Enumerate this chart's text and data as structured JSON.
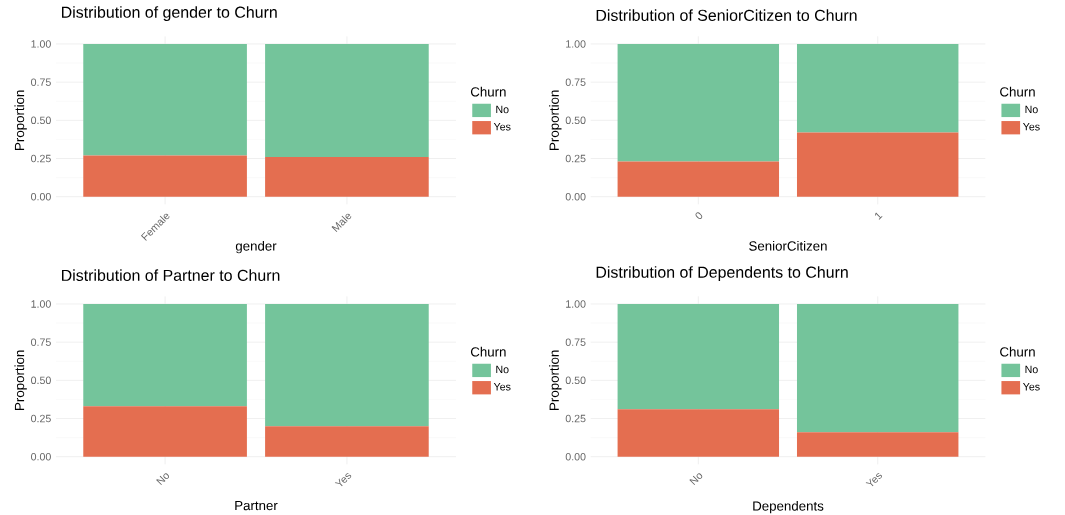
{
  "chart_data": [
    {
      "type": "bar",
      "title": "Distribution of gender to Churn",
      "xlabel": "gender",
      "ylabel": "Proportion",
      "legend_title": "Churn",
      "categories": [
        "Female",
        "Male"
      ],
      "stacked": true,
      "legend": "right",
      "grid": true,
      "ylim": [
        -0.05,
        1.05
      ],
      "yticks": [
        {
          "value": 0,
          "label": "0.00"
        },
        {
          "value": 0.25,
          "label": "0.25"
        },
        {
          "value": 0.5,
          "label": "0.50"
        },
        {
          "value": 0.75,
          "label": "0.75"
        },
        {
          "value": 1,
          "label": "1.00"
        }
      ],
      "series": [
        {
          "name": "Yes",
          "color": "#e46e50",
          "values": [
            0.27,
            0.26
          ]
        },
        {
          "name": "No",
          "color": "#74c49b",
          "values": [
            0.73,
            0.74
          ]
        }
      ]
    },
    {
      "type": "bar",
      "title": "Distribution of SeniorCitizen to Churn",
      "xlabel": "SeniorCitizen",
      "ylabel": "Proportion",
      "legend_title": "Churn",
      "categories": [
        "0",
        "1"
      ],
      "stacked": true,
      "legend": "right",
      "grid": true,
      "ylim": [
        -0.05,
        1.05
      ],
      "yticks": [
        {
          "value": 0,
          "label": "0.00"
        },
        {
          "value": 0.25,
          "label": "0.25"
        },
        {
          "value": 0.5,
          "label": "0.50"
        },
        {
          "value": 0.75,
          "label": "0.75"
        },
        {
          "value": 1,
          "label": "1.00"
        }
      ],
      "series": [
        {
          "name": "Yes",
          "color": "#e46e50",
          "values": [
            0.23,
            0.42
          ]
        },
        {
          "name": "No",
          "color": "#74c49b",
          "values": [
            0.77,
            0.58
          ]
        }
      ]
    },
    {
      "type": "bar",
      "title": "Distribution of Partner to Churn",
      "xlabel": "Partner",
      "ylabel": "Proportion",
      "legend_title": "Churn",
      "categories": [
        "No",
        "Yes"
      ],
      "stacked": true,
      "legend": "right",
      "grid": true,
      "ylim": [
        -0.05,
        1.05
      ],
      "yticks": [
        {
          "value": 0,
          "label": "0.00"
        },
        {
          "value": 0.25,
          "label": "0.25"
        },
        {
          "value": 0.5,
          "label": "0.50"
        },
        {
          "value": 0.75,
          "label": "0.75"
        },
        {
          "value": 1,
          "label": "1.00"
        }
      ],
      "series": [
        {
          "name": "Yes",
          "color": "#e46e50",
          "values": [
            0.33,
            0.2
          ]
        },
        {
          "name": "No",
          "color": "#74c49b",
          "values": [
            0.67,
            0.8
          ]
        }
      ]
    },
    {
      "type": "bar",
      "title": "Distribution of Dependents to Churn",
      "xlabel": "Dependents",
      "ylabel": "Proportion",
      "legend_title": "Churn",
      "categories": [
        "No",
        "Yes"
      ],
      "stacked": true,
      "legend": "right",
      "grid": true,
      "ylim": [
        -0.05,
        1.05
      ],
      "yticks": [
        {
          "value": 0,
          "label": "0.00"
        },
        {
          "value": 0.25,
          "label": "0.25"
        },
        {
          "value": 0.5,
          "label": "0.50"
        },
        {
          "value": 0.75,
          "label": "0.75"
        },
        {
          "value": 1,
          "label": "1.00"
        }
      ],
      "series": [
        {
          "name": "Yes",
          "color": "#e46e50",
          "values": [
            0.31,
            0.16
          ]
        },
        {
          "name": "No",
          "color": "#74c49b",
          "values": [
            0.69,
            0.84
          ]
        }
      ]
    }
  ]
}
